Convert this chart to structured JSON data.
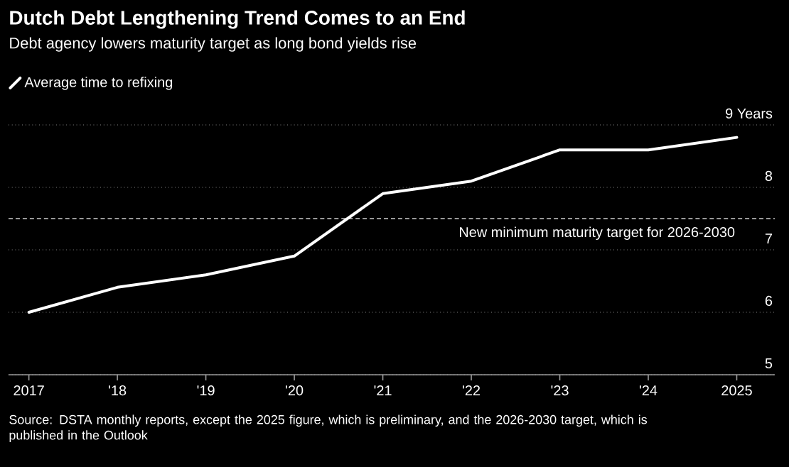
{
  "chart_data": {
    "type": "line",
    "title": "Dutch Debt Lengthening Trend Comes to an End",
    "subtitle": "Debt agency lowers maturity target as long bond yields rise",
    "x": [
      2017,
      2018,
      2019,
      2020,
      2021,
      2022,
      2023,
      2024,
      2025
    ],
    "series": [
      {
        "name": "Average time to refixing",
        "color": "#ffffff",
        "values": [
          6.0,
          6.4,
          6.6,
          6.9,
          7.9,
          8.1,
          8.6,
          8.6,
          8.8
        ]
      }
    ],
    "xlim": [
      2016.77,
      2025.43
    ],
    "xticks": [
      2017,
      {
        "value": 2018,
        "label": "'18"
      },
      {
        "value": 2019,
        "label": "'19"
      },
      {
        "value": 2020,
        "label": "'20"
      },
      {
        "value": 2021,
        "label": "'21"
      },
      {
        "value": 2022,
        "label": "'22"
      },
      {
        "value": 2023,
        "label": "'23"
      },
      {
        "value": 2024,
        "label": "'24"
      },
      2025
    ],
    "ylim": [
      5,
      9
    ],
    "yticks": [
      5,
      6,
      7,
      8,
      {
        "value": 9,
        "label": "9 Years"
      }
    ],
    "grid": "y",
    "legend": "top left",
    "ref_lines": [
      {
        "axis": "y",
        "value": 7.5,
        "label": "New minimum maturity target for 2026-2030",
        "color": "#cccccc",
        "line_style": "dashed"
      }
    ],
    "annotations": [
      "Source: DSTA monthly reports, except the 2025 figure, which is preliminary, and the 2026-2030 target, which is published in the Outlook"
    ]
  }
}
